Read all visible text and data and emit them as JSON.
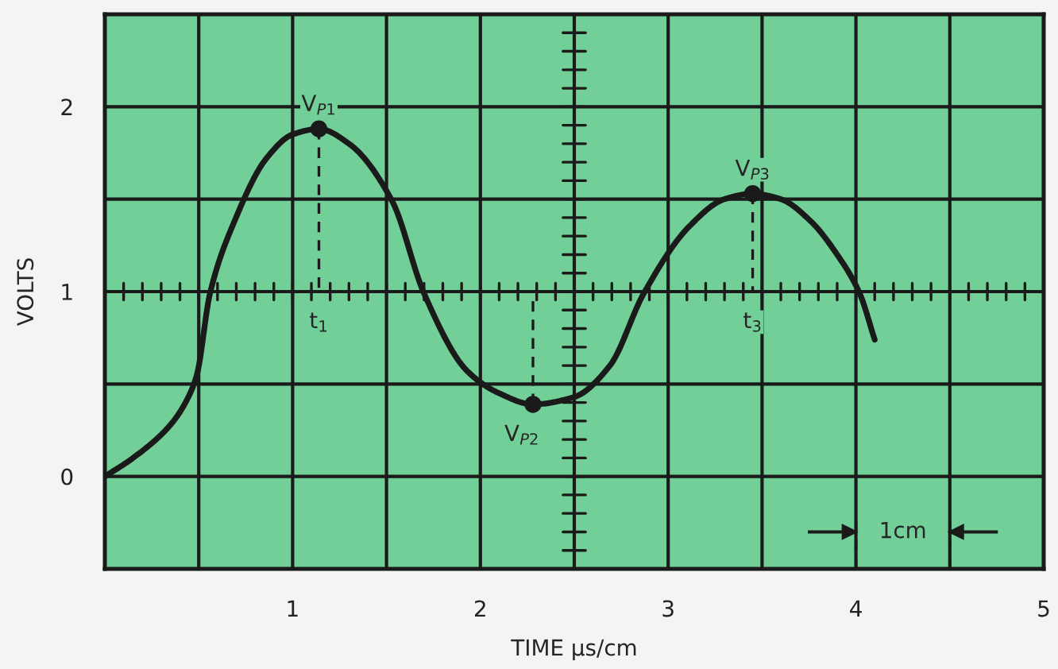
{
  "chart_data": {
    "type": "line",
    "xlabel": "TIME μs/cm",
    "ylabel": "VOLTS",
    "xlim": [
      0,
      5
    ],
    "ylim": [
      -0.5,
      2.5
    ],
    "xticks": [
      {
        "value": 0.5,
        "label": null
      },
      1,
      {
        "value": 1.5,
        "label": null
      },
      2,
      {
        "value": 2.5,
        "label": null
      },
      3,
      {
        "value": 3.5,
        "label": null
      },
      4,
      {
        "value": 4.5,
        "label": null
      },
      5
    ],
    "yticks": [
      0,
      {
        "value": 0.5,
        "label": null
      },
      1,
      {
        "value": 1.5,
        "label": null
      },
      2
    ],
    "grid": true,
    "line_style": "solid",
    "series": [
      {
        "color": "#1a1a1a",
        "marker": "none",
        "x": [
          0,
          0.15,
          0.35,
          0.44,
          0.49,
          0.56,
          0.69,
          0.86,
          1.0,
          1.14,
          1.3,
          1.53,
          1.7,
          1.93,
          2.1,
          2.28,
          2.5,
          2.69,
          2.87,
          3.11,
          3.3,
          3.45,
          3.6,
          3.76,
          3.9,
          4.02,
          4.1
        ],
        "values": [
          0,
          0.1,
          0.28,
          0.42,
          0.55,
          0.99,
          1.38,
          1.72,
          1.85,
          1.88,
          1.8,
          1.49,
          0.99,
          0.57,
          0.45,
          0.39,
          0.43,
          0.6,
          0.99,
          1.35,
          1.5,
          1.53,
          1.5,
          1.38,
          1.2,
          0.99,
          0.74
        ]
      },
      {
        "type": "scatter",
        "color": "#1a1a1a",
        "marker": "circle",
        "x": [
          1.14,
          2.28,
          3.45
        ],
        "values": [
          1.88,
          0.39,
          1.53
        ]
      }
    ],
    "annotations": [
      {
        "text": "V$_{P1}$",
        "x": 1.14,
        "y": 1.88
      },
      {
        "text": "t$_{1}$",
        "x": 1.14,
        "y": 1.88
      },
      {
        "text": "V$_{P2}$",
        "x": 2.28,
        "y": 0.39
      },
      {
        "text": "V$_{P3}$",
        "x": 3.45,
        "y": 1.53
      },
      {
        "text": "t$_{3}$",
        "x": 3.45,
        "y": 1.53
      },
      "1cm"
    ]
  }
}
